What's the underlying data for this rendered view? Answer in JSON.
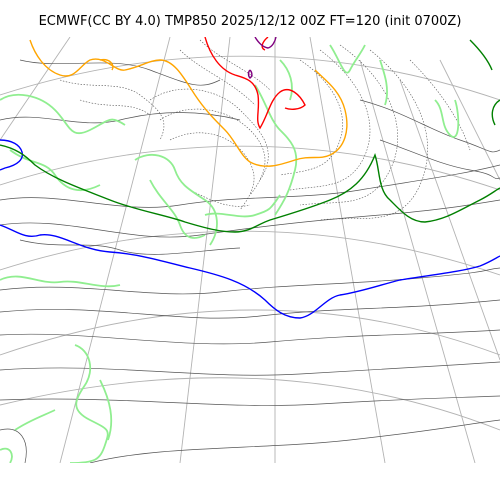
{
  "title": "ECMWF(CC BY 4.0) TMP850 2025/12/12 00Z FT=120 (init 0700Z)",
  "colors": {
    "graticule": "#b3b3b3",
    "coastline": "#4d4d4d",
    "isotherm_minor": "#555555",
    "isotherm_blue": "#0000ff",
    "isotherm_green": "#008000",
    "isotherm_orange": "#ffa500",
    "isotherm_red": "#ff0000",
    "isotherm_purple": "#800080",
    "land_contour": "#90ee90",
    "background": "#ffffff"
  }
}
